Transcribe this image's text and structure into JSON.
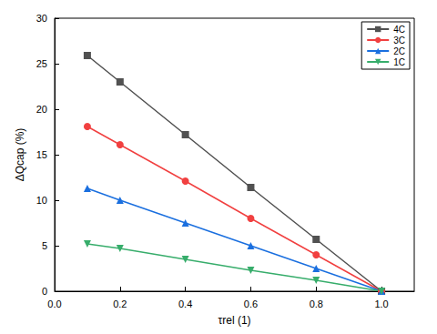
{
  "chart_data": {
    "type": "line",
    "xlabel": "τrel (1)",
    "ylabel": "ΔQcap (%)",
    "x": [
      0.1,
      0.2,
      0.4,
      0.6,
      0.8,
      1.0
    ],
    "series": [
      {
        "name": "4C",
        "color": "#515151",
        "marker": "square",
        "values": [
          25.9,
          23.0,
          17.2,
          11.4,
          5.7,
          0
        ]
      },
      {
        "name": "3C",
        "color": "#f14040",
        "marker": "circle",
        "values": [
          18.1,
          16.1,
          12.1,
          8.0,
          4.0,
          0
        ]
      },
      {
        "name": "2C",
        "color": "#1a6fdf",
        "marker": "triangle",
        "values": [
          11.3,
          10.0,
          7.5,
          5.0,
          2.5,
          0
        ]
      },
      {
        "name": "1C",
        "color": "#37ad6b",
        "marker": "triangle-down",
        "values": [
          5.2,
          4.7,
          3.5,
          2.3,
          1.2,
          0
        ]
      }
    ],
    "xlim": [
      0,
      1.1
    ],
    "xticks": [
      {
        "value": 0,
        "label": "0.0"
      },
      {
        "value": 0.2,
        "label": "0.2"
      },
      {
        "value": 0.4,
        "label": "0.4"
      },
      {
        "value": 0.6,
        "label": "0.6"
      },
      {
        "value": 0.8,
        "label": "0.8"
      },
      {
        "value": 1,
        "label": "1.0"
      }
    ],
    "ylim": [
      0,
      30
    ],
    "yticks": [
      0,
      5,
      10,
      15,
      20,
      25,
      30
    ],
    "grid": false,
    "legend": "upper right"
  }
}
